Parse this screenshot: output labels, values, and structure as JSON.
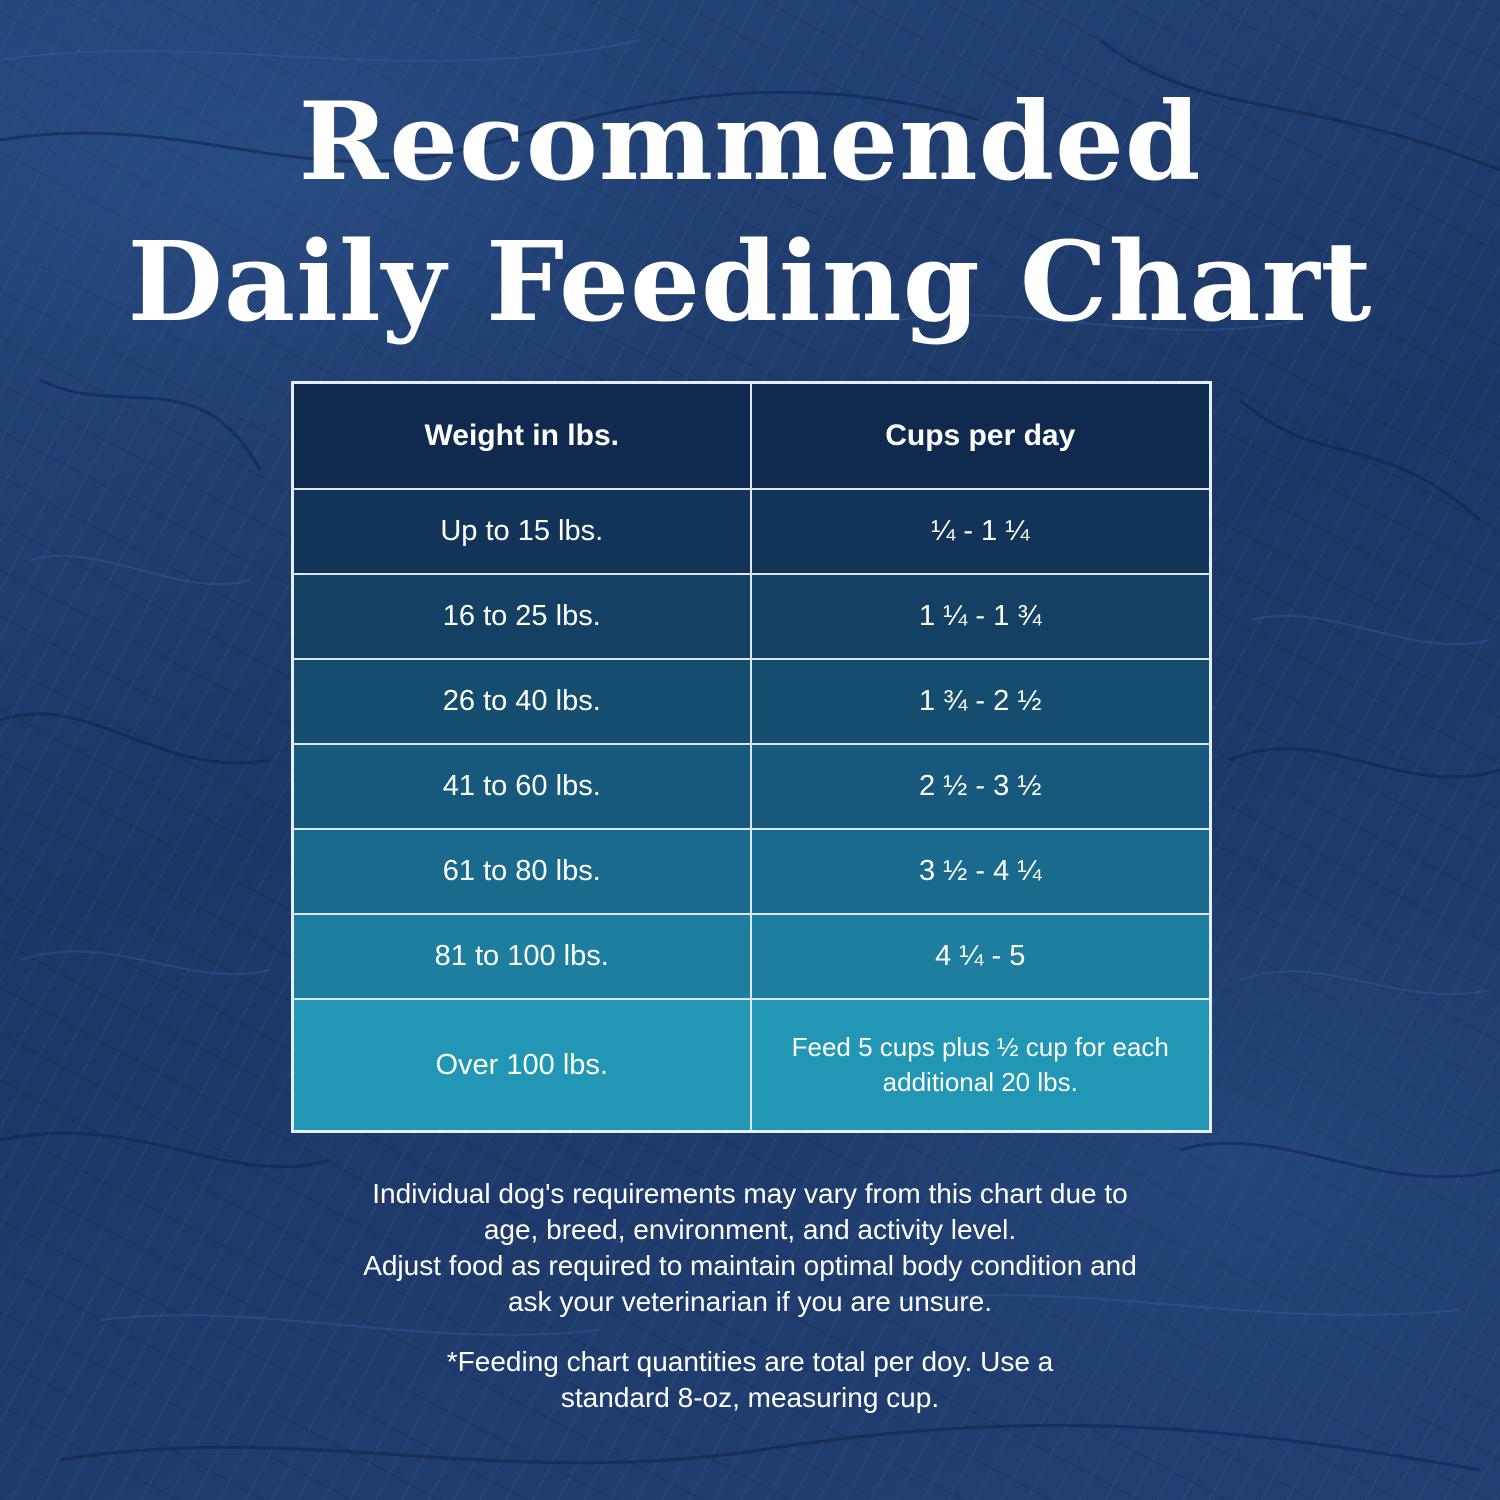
{
  "title": {
    "line1": "Recommended",
    "line2": "Daily Feeding Chart"
  },
  "chart_data": {
    "type": "table",
    "columns": [
      "Weight in lbs.",
      "Cups per day"
    ],
    "rows": [
      [
        "Up to 15 lbs.",
        "¼  - 1 ¼"
      ],
      [
        "16 to 25 lbs.",
        "1 ¼  - 1 ¾"
      ],
      [
        "26 to 40 lbs.",
        "1 ¾  - 2 ½"
      ],
      [
        "41 to 60 lbs.",
        "2 ½  - 3 ½"
      ],
      [
        "61 to 80 lbs.",
        "3 ½  - 4 ¼"
      ],
      [
        "81 to 100 lbs.",
        "4 ¼  - 5"
      ],
      [
        "Over 100 lbs.",
        "Feed 5 cups plus ½ cup for each additional 20 lbs."
      ]
    ]
  },
  "colors": {
    "header_row": "#10294f",
    "row_fills": [
      "#123458",
      "#134063",
      "#154d6f",
      "#17597d",
      "#1a6a8e",
      "#1d7e9f",
      "#2196b5"
    ],
    "cell_border": "#dfe8f0",
    "text": "#ffffff"
  },
  "footnotes": {
    "requirements": [
      "Individual dog's requirements may vary from this chart due to",
      "age, breed, environment, and activity level.",
      "Adjust food as required to maintain optimal body condition and",
      "ask your veterinarian if you are unsure."
    ],
    "quantities": [
      "*Feeding chart quantities are total per doy. Use a",
      "standard 8-oz, measuring cup."
    ]
  }
}
